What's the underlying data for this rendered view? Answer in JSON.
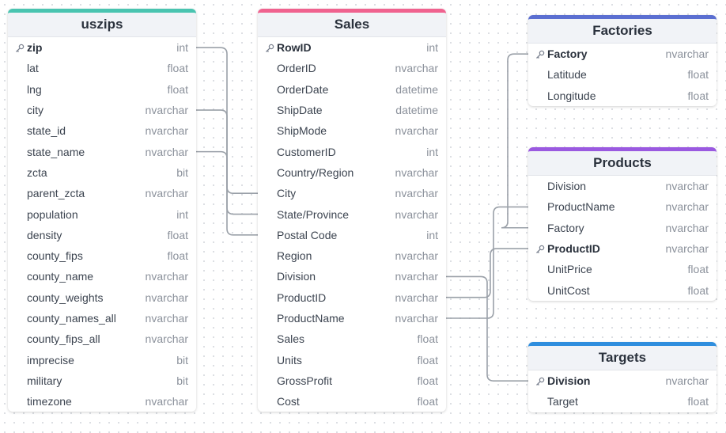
{
  "tables": {
    "uszips": {
      "title": "uszips",
      "accent": "#49c4b0",
      "columns": [
        {
          "name": "zip",
          "type": "int",
          "pk": true
        },
        {
          "name": "lat",
          "type": "float"
        },
        {
          "name": "lng",
          "type": "float"
        },
        {
          "name": "city",
          "type": "nvarchar"
        },
        {
          "name": "state_id",
          "type": "nvarchar"
        },
        {
          "name": "state_name",
          "type": "nvarchar"
        },
        {
          "name": "zcta",
          "type": "bit"
        },
        {
          "name": "parent_zcta",
          "type": "nvarchar"
        },
        {
          "name": "population",
          "type": "int"
        },
        {
          "name": "density",
          "type": "float"
        },
        {
          "name": "county_fips",
          "type": "float"
        },
        {
          "name": "county_name",
          "type": "nvarchar"
        },
        {
          "name": "county_weights",
          "type": "nvarchar"
        },
        {
          "name": "county_names_all",
          "type": "nvarchar"
        },
        {
          "name": "county_fips_all",
          "type": "nvarchar"
        },
        {
          "name": "imprecise",
          "type": "bit"
        },
        {
          "name": "military",
          "type": "bit"
        },
        {
          "name": "timezone",
          "type": "nvarchar"
        }
      ]
    },
    "sales": {
      "title": "Sales",
      "accent": "#f0628f",
      "columns": [
        {
          "name": "RowID",
          "type": "int",
          "pk": true
        },
        {
          "name": "OrderID",
          "type": "nvarchar"
        },
        {
          "name": "OrderDate",
          "type": "datetime"
        },
        {
          "name": "ShipDate",
          "type": "datetime"
        },
        {
          "name": "ShipMode",
          "type": "nvarchar"
        },
        {
          "name": "CustomerID",
          "type": "int"
        },
        {
          "name": "Country/Region",
          "type": "nvarchar"
        },
        {
          "name": "City",
          "type": "nvarchar"
        },
        {
          "name": "State/Province",
          "type": "nvarchar"
        },
        {
          "name": "Postal Code",
          "type": "int"
        },
        {
          "name": "Region",
          "type": "nvarchar"
        },
        {
          "name": "Division",
          "type": "nvarchar"
        },
        {
          "name": "ProductID",
          "type": "nvarchar"
        },
        {
          "name": "ProductName",
          "type": "nvarchar"
        },
        {
          "name": "Sales",
          "type": "float"
        },
        {
          "name": "Units",
          "type": "float"
        },
        {
          "name": "GrossProfit",
          "type": "float"
        },
        {
          "name": "Cost",
          "type": "float"
        }
      ]
    },
    "factories": {
      "title": "Factories",
      "accent": "#5b6fd1",
      "columns": [
        {
          "name": "Factory",
          "type": "nvarchar",
          "pk": true
        },
        {
          "name": "Latitude",
          "type": "float"
        },
        {
          "name": "Longitude",
          "type": "float"
        }
      ]
    },
    "products": {
      "title": "Products",
      "accent": "#9a59e0",
      "columns": [
        {
          "name": "Division",
          "type": "nvarchar"
        },
        {
          "name": "ProductName",
          "type": "nvarchar"
        },
        {
          "name": "Factory",
          "type": "nvarchar"
        },
        {
          "name": "ProductID",
          "type": "nvarchar",
          "pk": true
        },
        {
          "name": "UnitPrice",
          "type": "float"
        },
        {
          "name": "UnitCost",
          "type": "float"
        }
      ]
    },
    "targets": {
      "title": "Targets",
      "accent": "#2f8ede",
      "columns": [
        {
          "name": "Division",
          "type": "nvarchar",
          "pk": true
        },
        {
          "name": "Target",
          "type": "float"
        }
      ]
    }
  },
  "relationships": [
    {
      "from": "uszips.zip",
      "to": "sales.Postal Code"
    },
    {
      "from": "uszips.city",
      "to": "sales.City"
    },
    {
      "from": "uszips.state_name",
      "to": "sales.State/Province"
    },
    {
      "from": "sales.Division",
      "to": "targets.Division"
    },
    {
      "from": "sales.ProductID",
      "to": "products.ProductID"
    },
    {
      "from": "sales.ProductName",
      "to": "products.ProductName"
    },
    {
      "from": "products.Factory",
      "to": "factories.Factory"
    }
  ]
}
